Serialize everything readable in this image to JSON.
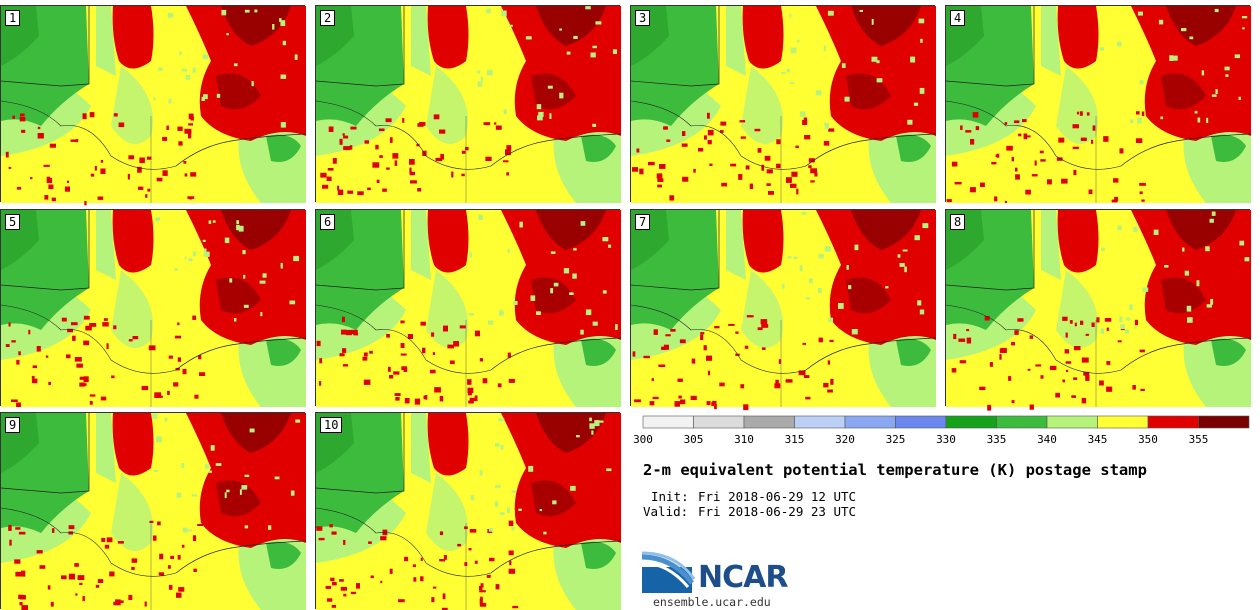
{
  "panels": [
    {
      "label": "1"
    },
    {
      "label": "2"
    },
    {
      "label": "3"
    },
    {
      "label": "4"
    },
    {
      "label": "5"
    },
    {
      "label": "6"
    },
    {
      "label": "7"
    },
    {
      "label": "8"
    },
    {
      "label": "9"
    },
    {
      "label": "10"
    }
  ],
  "colorbar": {
    "ticks": [
      "300",
      "305",
      "310",
      "315",
      "320",
      "325",
      "330",
      "335",
      "340",
      "345",
      "350",
      "355"
    ],
    "colors": [
      "#f2f2f2",
      "#dcdcdc",
      "#aaaaaa",
      "#bcd0f5",
      "#8aa8f2",
      "#6b88ee",
      "#16a11c",
      "#3dbb3d",
      "#b6f37a",
      "#ffff33",
      "#e00000",
      "#7a0000"
    ]
  },
  "title": "2-m equivalent potential temperature (K) postage stamp",
  "init_label": "Init:",
  "init_value": "Fri 2018-06-29 12 UTC",
  "valid_label": "Valid:",
  "valid_value": "Fri 2018-06-29 23 UTC",
  "logo_text": "NCAR",
  "site": "ensemble.ucar.edu"
}
